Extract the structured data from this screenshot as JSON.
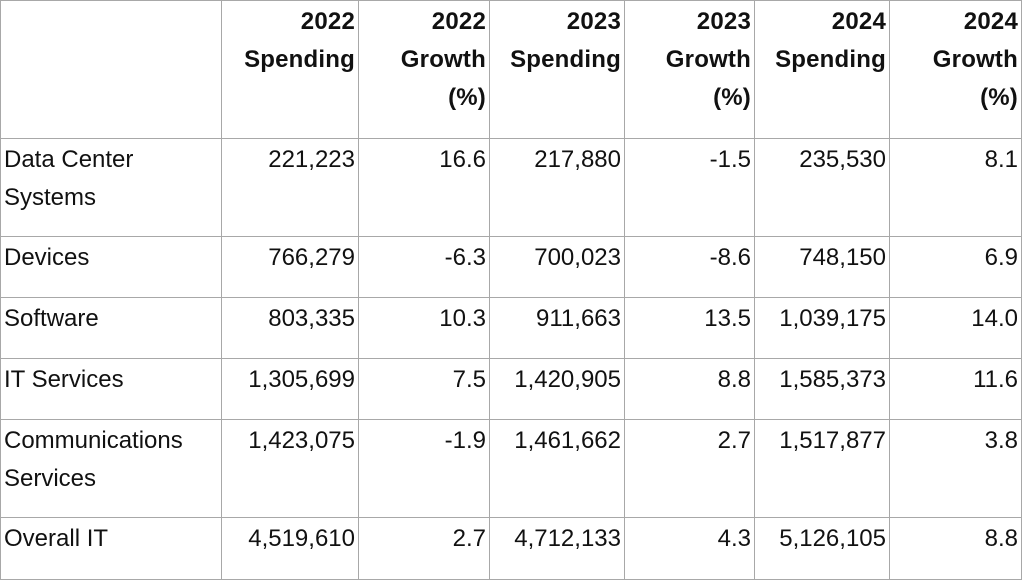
{
  "chart_data": {
    "type": "table",
    "columns": [
      "",
      "2022 Spending",
      "2022 Growth (%)",
      "2023 Spending",
      "2023 Growth (%)",
      "2024 Spending",
      "2024 Growth (%)"
    ],
    "header": [
      "",
      "2022 Spending",
      "2022 Growth (%)",
      "2023 Spending",
      "2023 Growth (%)",
      "2024 Spending",
      "2024 Growth (%)"
    ],
    "rows": [
      {
        "category": "Data Center Systems",
        "values": [
          "221,223",
          "16.6",
          "217,880",
          "-1.5",
          "235,530",
          "8.1"
        ]
      },
      {
        "category": "Devices",
        "values": [
          "766,279",
          "-6.3",
          "700,023",
          "-8.6",
          "748,150",
          "6.9"
        ]
      },
      {
        "category": "Software",
        "values": [
          "803,335",
          "10.3",
          "911,663",
          "13.5",
          "1,039,175",
          "14.0"
        ]
      },
      {
        "category": "IT Services",
        "values": [
          "1,305,699",
          "7.5",
          "1,420,905",
          "8.8",
          "1,585,373",
          "11.6"
        ]
      },
      {
        "category": "Communications Services",
        "values": [
          "1,423,075",
          "-1.9",
          "1,461,662",
          "2.7",
          "1,517,877",
          "3.8"
        ]
      },
      {
        "category": "Overall IT",
        "values": [
          "4,519,610",
          "2.7",
          "4,712,133",
          "4.3",
          "5,126,105",
          "8.8"
        ]
      }
    ]
  }
}
